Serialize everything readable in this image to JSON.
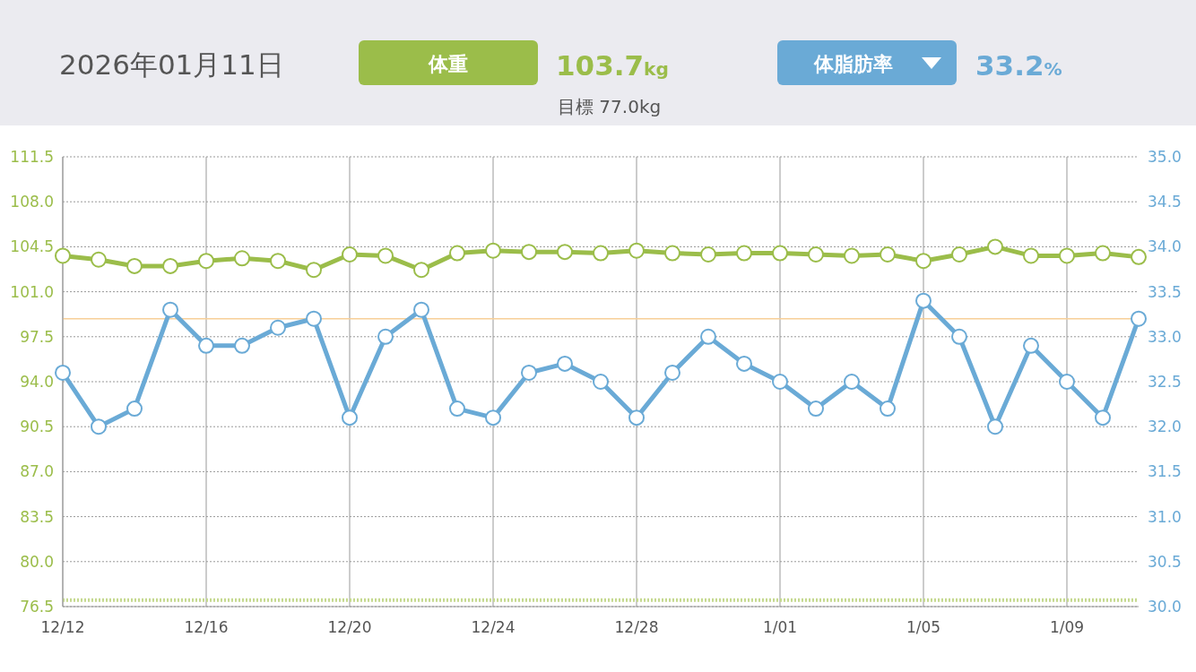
{
  "chart_data": {
    "type": "line",
    "title": "2026年01月11日",
    "x": [
      "2025-12-12",
      "2025-12-13",
      "2025-12-14",
      "2025-12-15",
      "2025-12-16",
      "2025-12-17",
      "2025-12-18",
      "2025-12-19",
      "2025-12-20",
      "2025-12-21",
      "2025-12-22",
      "2025-12-23",
      "2025-12-24",
      "2025-12-25",
      "2025-12-26",
      "2025-12-27",
      "2025-12-28",
      "2025-12-29",
      "2025-12-30",
      "2025-12-31",
      "2026-01-01",
      "2026-01-02",
      "2026-01-03",
      "2026-01-04",
      "2026-01-05",
      "2026-01-06",
      "2026-01-07",
      "2026-01-08",
      "2026-01-09",
      "2026-01-10",
      "2026-01-11"
    ],
    "series": [
      {
        "name": "体重",
        "color": "#9bbd4a",
        "values": [
          103.8,
          103.5,
          103.0,
          103.0,
          103.4,
          103.6,
          103.4,
          102.7,
          103.9,
          103.8,
          102.7,
          104.0,
          104.2,
          104.1,
          104.1,
          104.0,
          104.2,
          104.0,
          103.9,
          104.0,
          104.0,
          103.9,
          103.8,
          103.9,
          103.4,
          103.9,
          104.5,
          103.8,
          103.8,
          104.0,
          103.7
        ]
      },
      {
        "name": "体脂肪率",
        "color": "#6aaad6",
        "axis": "y2",
        "values": [
          32.6,
          32.0,
          32.2,
          33.3,
          32.9,
          32.9,
          33.1,
          33.2,
          32.1,
          33.0,
          33.3,
          32.2,
          32.1,
          32.6,
          32.7,
          32.5,
          32.1,
          32.6,
          33.0,
          32.7,
          32.5,
          32.2,
          32.5,
          32.2,
          33.4,
          33.0,
          32.0,
          32.9,
          32.5,
          32.1,
          33.2
        ]
      }
    ],
    "xlim": [
      "2025-12-12",
      "2026-01-11"
    ],
    "xticks": [
      {
        "value": "2025-12-12",
        "label": "12/12"
      },
      {
        "value": "2025-12-16",
        "label": "12/16"
      },
      {
        "value": "2025-12-20",
        "label": "12/20"
      },
      {
        "value": "2025-12-24",
        "label": "12/24"
      },
      {
        "value": "2025-12-28",
        "label": "12/28"
      },
      {
        "value": "2026-01-01",
        "label": "1/01"
      },
      {
        "value": "2026-01-05",
        "label": "1/05"
      },
      {
        "value": "2026-01-09",
        "label": "1/09"
      }
    ],
    "ylim": [
      76.5,
      111.5
    ],
    "yticks": [
      {
        "value": 76.5,
        "label": "76.5"
      },
      {
        "value": 80.0,
        "label": "80.0"
      },
      {
        "value": 83.5,
        "label": "83.5"
      },
      {
        "value": 87.0,
        "label": "87.0"
      },
      {
        "value": 90.5,
        "label": "90.5"
      },
      {
        "value": 94.0,
        "label": "94.0"
      },
      {
        "value": 97.5,
        "label": "97.5"
      },
      {
        "value": 101.0,
        "label": "101.0"
      },
      {
        "value": 104.5,
        "label": "104.5"
      },
      {
        "value": 108.0,
        "label": "108.0"
      },
      {
        "value": 111.5,
        "label": "111.5"
      }
    ],
    "y2lim": [
      30.0,
      35.0
    ],
    "y2ticks": [
      {
        "value": 30.0,
        "label": "30.0"
      },
      {
        "value": 30.5,
        "label": "30.5"
      },
      {
        "value": 31.0,
        "label": "31.0"
      },
      {
        "value": 31.5,
        "label": "31.5"
      },
      {
        "value": 32.0,
        "label": "32.0"
      },
      {
        "value": 32.5,
        "label": "32.5"
      },
      {
        "value": 33.0,
        "label": "33.0"
      },
      {
        "value": 33.5,
        "label": "33.5"
      },
      {
        "value": 34.0,
        "label": "34.0"
      },
      {
        "value": 34.5,
        "label": "34.5"
      },
      {
        "value": 35.0,
        "label": "35.0"
      }
    ],
    "ref_lines": [
      {
        "axis": "y",
        "value": 77.0,
        "color": "#c5d98f",
        "line_style": "dotted"
      },
      {
        "axis": "y2",
        "value": 33.2,
        "color": "#f7cf98",
        "line_style": "solid"
      }
    ],
    "annotations": [
      "103.7kg",
      "目標 77.0kg",
      "33.2%"
    ],
    "grid": true,
    "legend": "top",
    "marker": "circle",
    "line_style": "solid"
  }
}
